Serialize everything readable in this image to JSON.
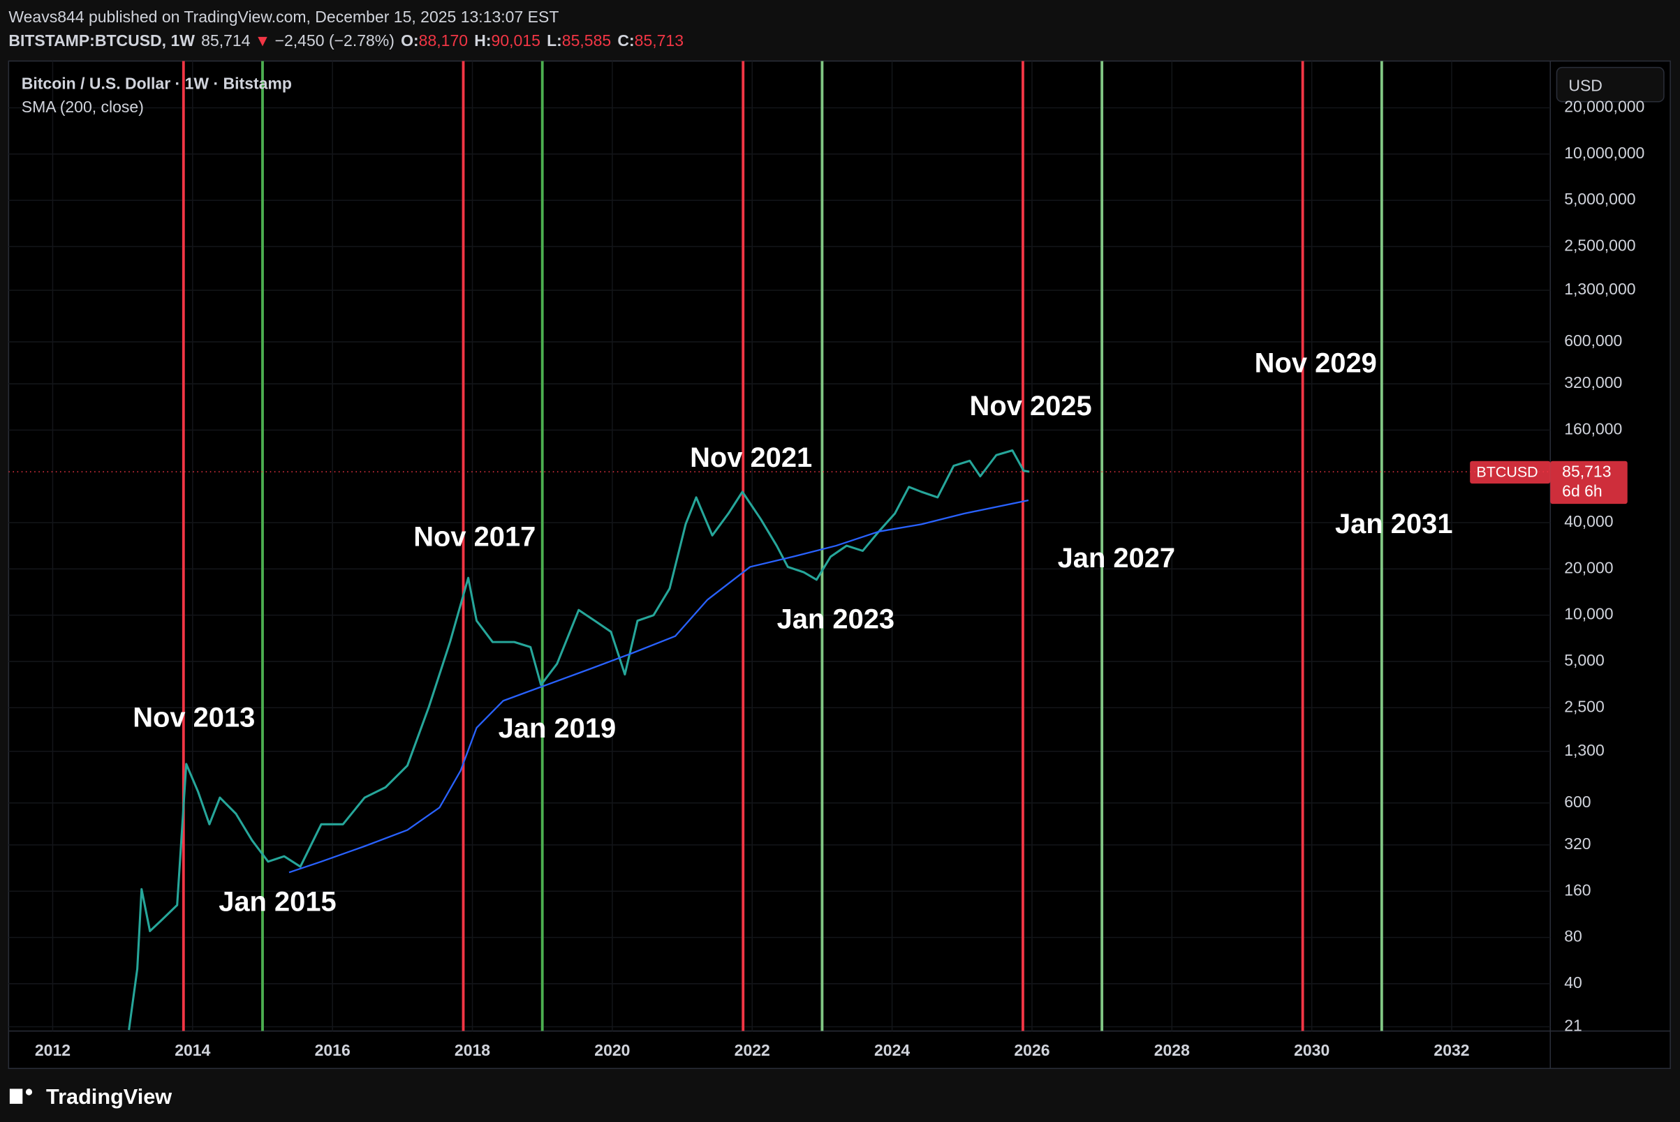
{
  "header": {
    "publish": "Weavs844 published on TradingView.com, December 15, 2025 13:13:07 EST",
    "symbol": "BITSTAMP:BTCUSD, 1W",
    "price": "85,714",
    "arrow": "▼",
    "change": "−2,450 (−2.78%)",
    "o_label": "O:",
    "o": "88,170",
    "h_label": "H:",
    "h": "90,015",
    "l_label": "L:",
    "l": "85,585",
    "c_label": "C:",
    "c": "85,713"
  },
  "legend": {
    "instrument": "Bitcoin / U.S. Dollar · 1W · Bitstamp",
    "currency": "USD",
    "countdown": "6d 6h"
  },
  "footer": {
    "brand": "TradingView"
  },
  "chart_data": {
    "type": "line",
    "log_scale": true,
    "grid": true,
    "xlim": [
      2011.37,
      2033.41
    ],
    "xticks": [
      2012,
      2014,
      2016,
      2018,
      2020,
      2022,
      2024,
      2026,
      2028,
      2030,
      2032
    ],
    "ylim": [
      19.7,
      40300000
    ],
    "yticks": [
      {
        "value": 20000000,
        "label": "20,000,000"
      },
      {
        "value": 10000000,
        "label": "10,000,000"
      },
      {
        "value": 5000000,
        "label": "5,000,000"
      },
      {
        "value": 2500000,
        "label": "2,500,000"
      },
      {
        "value": 1300000,
        "label": "1,300,000"
      },
      {
        "value": 600000,
        "label": "600,000"
      },
      {
        "value": 320000,
        "label": "320,000"
      },
      {
        "value": 160000,
        "label": "160,000"
      },
      {
        "value": 40000,
        "label": "40,000"
      },
      {
        "value": 20000,
        "label": "20,000"
      },
      {
        "value": 10000,
        "label": "10,000"
      },
      {
        "value": 5000,
        "label": "5,000"
      },
      {
        "value": 2500,
        "label": "2,500"
      },
      {
        "value": 1300,
        "label": "1,300"
      },
      600,
      320,
      160,
      80,
      40,
      21
    ],
    "last_price": {
      "value": 85713,
      "label": "85,713"
    },
    "series": [
      {
        "name": "BTCUSD",
        "color": "#26a69a",
        "x": [
          2013.09,
          2013.21,
          2013.27,
          2013.39,
          2013.55,
          2013.78,
          2013.91,
          2014.08,
          2014.24,
          2014.39,
          2014.62,
          2014.85,
          2015.08,
          2015.31,
          2015.54,
          2015.84,
          2016.15,
          2016.46,
          2016.76,
          2017.07,
          2017.38,
          2017.68,
          2017.94,
          2018.06,
          2018.29,
          2018.6,
          2018.83,
          2018.98,
          2019.21,
          2019.52,
          2019.75,
          2019.98,
          2020.18,
          2020.36,
          2020.59,
          2020.82,
          2021.05,
          2021.2,
          2021.43,
          2021.66,
          2021.86,
          2022.12,
          2022.35,
          2022.51,
          2022.74,
          2022.92,
          2023.12,
          2023.35,
          2023.58,
          2023.81,
          2024.04,
          2024.24,
          2024.42,
          2024.65,
          2024.88,
          2025.11,
          2025.26,
          2025.49,
          2025.72,
          2025.88,
          2025.96
        ],
        "values": [
          20,
          50,
          165,
          88,
          103,
          130,
          1076,
          708,
          436,
          650,
          510,
          343,
          249,
          270,
          231,
          436,
          436,
          650,
          760,
          1050,
          2545,
          6680,
          17480,
          9200,
          6680,
          6680,
          6200,
          3520,
          4830,
          10800,
          9200,
          7800,
          4120,
          9200,
          10000,
          14900,
          39200,
          58400,
          33000,
          45800,
          63400,
          42300,
          28300,
          20600,
          19000,
          17000,
          24000,
          28300,
          26200,
          35000,
          45800,
          68300,
          63400,
          58400,
          93600,
          101000,
          80000,
          110000,
          118000,
          87000,
          85713
        ]
      },
      {
        "name": "SMA (200, close)",
        "color": "#2962ff",
        "x": [
          2015.38,
          2015.84,
          2016.46,
          2017.07,
          2017.53,
          2017.83,
          2018.06,
          2018.44,
          2019.06,
          2019.67,
          2020.28,
          2020.9,
          2021.36,
          2021.97,
          2022.58,
          2023.2,
          2023.81,
          2024.42,
          2025.03,
          2025.95
        ],
        "values": [
          212,
          249,
          314,
          400,
          560,
          970,
          1850,
          2770,
          3520,
          4450,
          5650,
          7300,
          12600,
          20600,
          24000,
          28300,
          35000,
          39000,
          45800,
          55900
        ]
      }
    ],
    "annotations": [
      {
        "text": "Nov 2013",
        "x": 2013.87,
        "color": "#f23645"
      },
      {
        "text": "Jan 2015",
        "x": 2015.0,
        "color": "#4caf50"
      },
      {
        "text": "Nov 2017",
        "x": 2017.87,
        "color": "#f23645"
      },
      {
        "text": "Jan 2019",
        "x": 2019.0,
        "color": "#4caf50"
      },
      {
        "text": "Nov 2021",
        "x": 2021.87,
        "color": "#f23645"
      },
      {
        "text": "Jan 2023",
        "x": 2023.0,
        "color": "#81c784"
      },
      {
        "text": "Nov 2025",
        "x": 2025.87,
        "color": "#f23645"
      },
      {
        "text": "Jan 2027",
        "x": 2027.0,
        "color": "#81c784"
      },
      {
        "text": "Nov 2029",
        "x": 2029.87,
        "color": "#f23645"
      },
      {
        "text": "Jan 2031",
        "x": 2031.0,
        "color": "#81c784"
      }
    ]
  }
}
